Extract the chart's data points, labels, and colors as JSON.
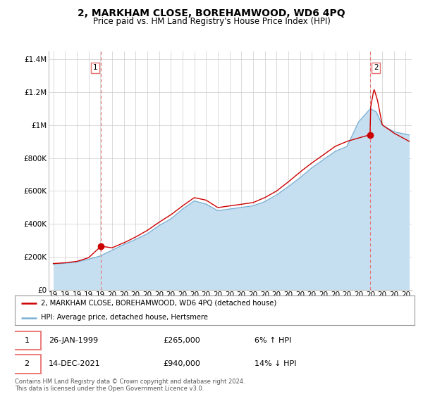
{
  "title": "2, MARKHAM CLOSE, BOREHAMWOOD, WD6 4PQ",
  "subtitle": "Price paid vs. HM Land Registry's House Price Index (HPI)",
  "ylabel_ticks": [
    "£0",
    "£200K",
    "£400K",
    "£600K",
    "£800K",
    "£1M",
    "£1.2M",
    "£1.4M"
  ],
  "ytick_vals": [
    0,
    200000,
    400000,
    600000,
    800000,
    1000000,
    1200000,
    1400000
  ],
  "ylim": [
    0,
    1450000
  ],
  "xlim_start": 1994.6,
  "xlim_end": 2025.5,
  "legend_line1": "2, MARKHAM CLOSE, BOREHAMWOOD, WD6 4PQ (detached house)",
  "legend_line2": "HPI: Average price, detached house, Hertsmere",
  "sale1_label": "1",
  "sale1_date": "26-JAN-1999",
  "sale1_price": "£265,000",
  "sale1_hpi": "6% ↑ HPI",
  "sale1_x": 1999.07,
  "sale1_y": 265000,
  "sale2_label": "2",
  "sale2_date": "14-DEC-2021",
  "sale2_price": "£940,000",
  "sale2_hpi": "14% ↓ HPI",
  "sale2_x": 2021.96,
  "sale2_y": 940000,
  "footer": "Contains HM Land Registry data © Crown copyright and database right 2024.\nThis data is licensed under the Open Government Licence v3.0.",
  "line_color_red": "#cc0000",
  "line_color_blue": "#7ab0d4",
  "fill_color_blue": "#c5dff0",
  "vline_color": "#e87070",
  "grid_color": "#cccccc",
  "bg_color": "#ffffff",
  "title_fontsize": 10,
  "subtitle_fontsize": 8.5,
  "tick_fontsize": 7.5,
  "hpi_knots_x": [
    1995,
    1996,
    1997,
    1998,
    1999,
    2000,
    2001,
    2002,
    2003,
    2004,
    2005,
    2006,
    2007,
    2008,
    2009,
    2010,
    2011,
    2012,
    2013,
    2014,
    2015,
    2016,
    2017,
    2018,
    2019,
    2020,
    2021,
    2021.5,
    2022,
    2022.5,
    2023,
    2024,
    2025.3
  ],
  "hpi_knots_y": [
    155000,
    160000,
    168000,
    185000,
    205000,
    240000,
    275000,
    305000,
    340000,
    390000,
    430000,
    490000,
    540000,
    520000,
    480000,
    490000,
    500000,
    510000,
    535000,
    575000,
    625000,
    680000,
    740000,
    790000,
    840000,
    870000,
    1020000,
    1060000,
    1100000,
    1080000,
    1000000,
    960000,
    940000
  ],
  "red_knots_x": [
    1995,
    1996,
    1997,
    1998,
    1999.07,
    2000,
    2001,
    2002,
    2003,
    2004,
    2005,
    2006,
    2007,
    2008,
    2009,
    2010,
    2011,
    2012,
    2013,
    2014,
    2015,
    2016,
    2017,
    2018,
    2019,
    2020,
    2021.96,
    2022.0,
    2022.3,
    2022.6,
    2023,
    2024,
    2025.3
  ],
  "red_knots_y": [
    158000,
    163000,
    172000,
    195000,
    265000,
    255000,
    285000,
    320000,
    360000,
    410000,
    455000,
    510000,
    560000,
    545000,
    500000,
    510000,
    520000,
    530000,
    560000,
    600000,
    655000,
    715000,
    770000,
    820000,
    870000,
    900000,
    940000,
    1100000,
    1220000,
    1150000,
    1000000,
    950000,
    900000
  ]
}
